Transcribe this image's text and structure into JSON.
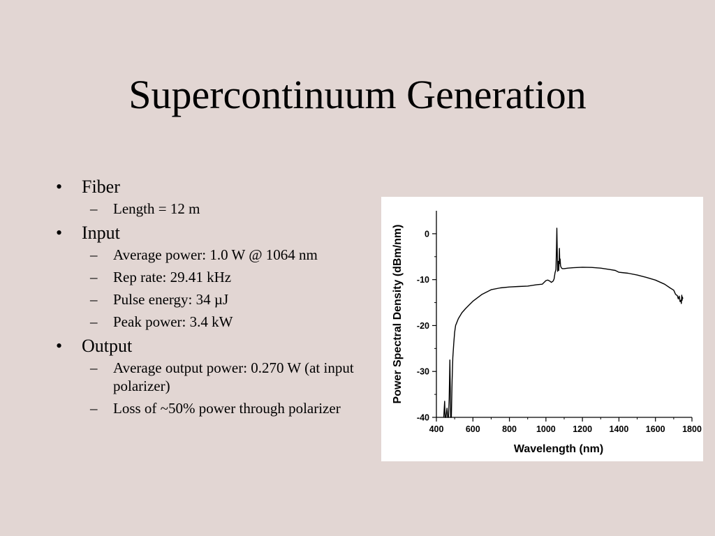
{
  "slide": {
    "title": "Supercontinuum Generation",
    "bullets": [
      {
        "label": "Fiber",
        "subs": [
          "Length = 12 m"
        ]
      },
      {
        "label": "Input",
        "subs": [
          "Average power: 1.0 W @ 1064 nm",
          "Rep rate: 29.41 kHz",
          "Pulse energy: 34 µJ",
          "Peak power: 3.4 kW"
        ]
      },
      {
        "label": "Output",
        "subs": [
          "Average output power: 0.270 W (at input polarizer)",
          "Loss of ~50% power through polarizer"
        ]
      }
    ]
  },
  "chart_data": {
    "type": "line",
    "xlabel": "Wavelength (nm)",
    "ylabel": "Power Spectral Density (dBm/nm)",
    "xlim": [
      400,
      1800
    ],
    "ylim": [
      -40,
      5
    ],
    "xticks": [
      400,
      600,
      800,
      1000,
      1200,
      1400,
      1600,
      1800
    ],
    "yticks": [
      0,
      -10,
      -20,
      -30,
      -40
    ],
    "grid": false,
    "series": [
      {
        "x": [
          440,
          445,
          448,
          452,
          458,
          462,
          466,
          470,
          474,
          478,
          482,
          486,
          490,
          495,
          500,
          505,
          510,
          520,
          540,
          560,
          580,
          600,
          650,
          700,
          750,
          800,
          850,
          900,
          950,
          980,
          1000,
          1010,
          1020,
          1030,
          1040,
          1045,
          1050,
          1055,
          1058,
          1060,
          1062,
          1064,
          1066,
          1068,
          1070,
          1072,
          1074,
          1076,
          1078,
          1080,
          1083,
          1086,
          1090,
          1100,
          1120,
          1150,
          1200,
          1250,
          1300,
          1350,
          1380,
          1400,
          1450,
          1500,
          1550,
          1600,
          1650,
          1680,
          1700,
          1710,
          1720,
          1725,
          1730,
          1735,
          1740,
          1742,
          1744,
          1746,
          1748,
          1750
        ],
        "y": [
          -40,
          -36.5,
          -40,
          -40,
          -38,
          -40,
          -40,
          -36,
          -27.5,
          -40,
          -40,
          -32,
          -27,
          -24,
          -21.5,
          -20,
          -19.5,
          -18.5,
          -17.2,
          -16.3,
          -15.5,
          -14.7,
          -13.2,
          -12.2,
          -11.8,
          -11.6,
          -11.5,
          -11.4,
          -11.1,
          -11.0,
          -10.2,
          -10.1,
          -10.3,
          -10.6,
          -10.3,
          -9.8,
          -8.5,
          -7.8,
          -3.0,
          1.2,
          -4.0,
          -8.2,
          -7.5,
          -6.0,
          -8.0,
          -6.2,
          -3.2,
          -6.5,
          -5.5,
          -7.0,
          -7.3,
          -7.5,
          -7.6,
          -7.6,
          -7.5,
          -7.4,
          -7.3,
          -7.35,
          -7.5,
          -7.8,
          -8.0,
          -8.4,
          -8.6,
          -9.0,
          -9.5,
          -10.1,
          -11.0,
          -11.8,
          -12.3,
          -13.2,
          -13.5,
          -14.2,
          -13.6,
          -14.8,
          -14.5,
          -15.2,
          -13.4,
          -14.5,
          -13.8,
          -14.2
        ]
      }
    ]
  }
}
